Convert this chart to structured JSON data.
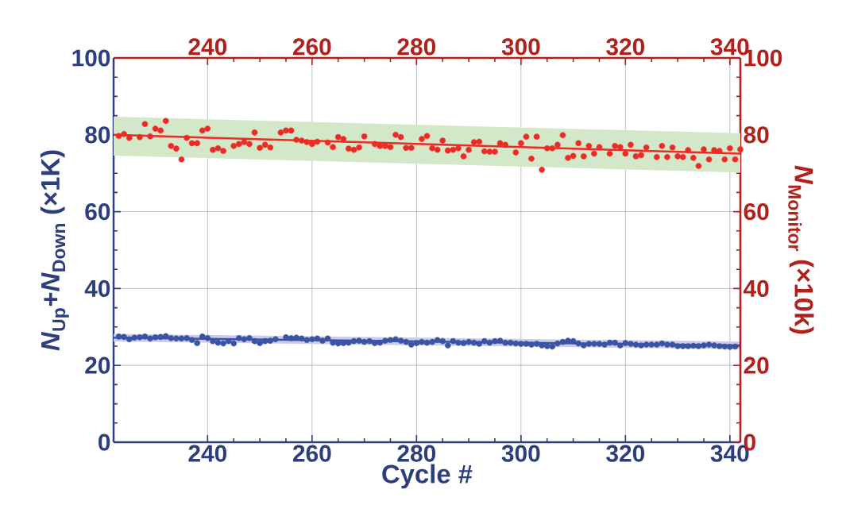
{
  "chart_data": {
    "type": "scatter",
    "xlabel": "Cycle #",
    "ylabel": "*N*$_{Up}$+*N*$_{Down}$ (×1K)",
    "y2label": "*N*$_{Monitor}$ (×10k)",
    "xlim": [
      222,
      342
    ],
    "xticks": [
      240,
      260,
      280,
      300,
      320,
      340
    ],
    "x2lim": [
      222,
      342
    ],
    "x2ticks": [
      240,
      260,
      280,
      300,
      320,
      340
    ],
    "ylim": [
      0,
      100
    ],
    "yticks": [
      0,
      20,
      40,
      60,
      80,
      100
    ],
    "y2lim": [
      0,
      100
    ],
    "y2ticks": [
      0,
      20,
      40,
      60,
      80,
      100
    ],
    "grid": true,
    "marker": "circle",
    "line_style": "solid",
    "series": [
      {
        "type": "line",
        "marker": "none",
        "color": "#3a53a4",
        "x": [
          222,
          342
        ],
        "values": [
          27.2,
          25.2
        ],
        "lower": [
          26.2,
          24.2
        ],
        "upper": [
          28.2,
          26.2
        ]
      },
      {
        "color": "#3a53a4",
        "x": [
          223,
          224,
          225,
          226,
          227,
          228,
          229,
          230,
          231,
          232,
          233,
          234,
          235,
          236,
          237,
          238,
          239,
          240,
          241,
          242,
          243,
          244,
          245,
          246,
          247,
          248,
          249,
          250,
          251,
          252,
          253,
          255,
          256,
          257,
          258,
          259,
          260,
          261,
          262,
          263,
          264,
          265,
          266,
          267,
          268,
          269,
          270,
          271,
          272,
          273,
          274,
          275,
          276,
          277,
          278,
          279,
          280,
          281,
          282,
          283,
          284,
          285,
          286,
          287,
          288,
          289,
          290,
          291,
          292,
          293,
          294,
          295,
          296,
          297,
          298,
          299,
          300,
          301,
          302,
          303,
          304,
          305,
          306,
          307,
          308,
          309,
          310,
          311,
          312,
          313,
          314,
          315,
          316,
          317,
          318,
          319,
          320,
          321,
          322,
          323,
          324,
          325,
          326,
          327,
          328,
          329,
          330,
          331,
          332,
          333,
          334,
          335,
          336,
          337,
          338,
          339,
          340,
          341
        ],
        "values": [
          27.5,
          27.4,
          26.8,
          27.2,
          27.3,
          27.5,
          27.0,
          27.3,
          27.4,
          27.6,
          27.1,
          27.0,
          27.0,
          27.1,
          26.6,
          25.8,
          27.5,
          27.1,
          26.3,
          25.9,
          25.7,
          26.3,
          25.7,
          27.1,
          26.8,
          27.1,
          26.3,
          25.8,
          26.3,
          26.4,
          26.8,
          27.3,
          27.1,
          27.2,
          27.0,
          26.6,
          26.8,
          27.0,
          26.4,
          27.0,
          25.9,
          25.7,
          25.8,
          25.9,
          26.3,
          26.4,
          26.1,
          26.3,
          25.8,
          25.9,
          26.4,
          26.6,
          26.8,
          26.4,
          26.1,
          25.4,
          25.8,
          26.1,
          25.9,
          26.1,
          26.6,
          26.3,
          25.2,
          26.3,
          25.9,
          25.8,
          26.1,
          25.9,
          25.6,
          26.3,
          25.9,
          26.3,
          26.4,
          25.9,
          25.9,
          25.7,
          25.6,
          25.6,
          25.4,
          25.6,
          25.2,
          25.0,
          24.9,
          25.7,
          26.1,
          26.4,
          26.3,
          25.7,
          25.2,
          25.6,
          25.6,
          25.6,
          25.4,
          25.9,
          25.9,
          25.2,
          25.8,
          25.6,
          25.4,
          25.2,
          25.4,
          25.4,
          25.4,
          25.7,
          25.4,
          25.4,
          25.0,
          25.0,
          25.0,
          25.1,
          25.0,
          25.2,
          25.4,
          25.2,
          25.0,
          24.9,
          24.8,
          24.9
        ]
      },
      {
        "type": "line",
        "marker": "none",
        "color": "#ee2a24",
        "axis": "y2",
        "x": [
          222,
          342
        ],
        "values": [
          80.0,
          75.1
        ],
        "lower": [
          74.6,
          70.2
        ],
        "upper": [
          84.7,
          80.4
        ]
      },
      {
        "color": "#ee2a24",
        "axis": "y2",
        "x": [
          223,
          224,
          225,
          227,
          228,
          229,
          230,
          231,
          232,
          233,
          234,
          235,
          236,
          237,
          238,
          239,
          240,
          241,
          242,
          243,
          245,
          246,
          247,
          248,
          249,
          250,
          251,
          252,
          254,
          255,
          256,
          257,
          258,
          259,
          260,
          261,
          263,
          264,
          265,
          266,
          267,
          268,
          269,
          270,
          272,
          273,
          274,
          275,
          276,
          277,
          278,
          279,
          281,
          282,
          283,
          284,
          285,
          286,
          287,
          288,
          289,
          290,
          291,
          292,
          293,
          294,
          295,
          296,
          297,
          299,
          300,
          301,
          302,
          303,
          304,
          305,
          306,
          307,
          308,
          309,
          310,
          311,
          312,
          313,
          314,
          315,
          317,
          318,
          319,
          320,
          321,
          322,
          323,
          324,
          326,
          327,
          328,
          329,
          330,
          331,
          332,
          333,
          334,
          335,
          336,
          337,
          338,
          339,
          340,
          341,
          342
        ],
        "values": [
          79.7,
          80.2,
          79.2,
          79.4,
          82.8,
          79.6,
          81.6,
          81.1,
          83.6,
          77.1,
          76.4,
          73.6,
          79.2,
          77.8,
          77.8,
          81.1,
          81.6,
          76.1,
          76.5,
          75.8,
          77.1,
          77.6,
          78.1,
          77.6,
          80.6,
          76.6,
          77.4,
          76.7,
          80.6,
          81.1,
          81.1,
          78.7,
          78.5,
          78.1,
          77.6,
          78.2,
          78.0,
          76.8,
          79.4,
          78.9,
          76.4,
          76.1,
          76.7,
          79.6,
          77.6,
          77.1,
          77.1,
          76.8,
          80.0,
          79.4,
          76.6,
          76.6,
          78.9,
          79.7,
          76.5,
          76.1,
          78.5,
          75.9,
          76.1,
          76.5,
          74.4,
          76.1,
          78.1,
          78.2,
          75.7,
          75.6,
          75.6,
          77.8,
          77.4,
          75.4,
          77.8,
          79.5,
          73.8,
          79.5,
          70.9,
          76.5,
          76.5,
          77.4,
          79.9,
          74.0,
          74.5,
          77.8,
          74.4,
          77.1,
          75.1,
          76.8,
          75.1,
          77.1,
          76.8,
          75.1,
          77.4,
          74.4,
          74.7,
          76.7,
          74.2,
          77.1,
          74.2,
          76.7,
          74.4,
          74.2,
          76.0,
          74.0,
          71.9,
          76.2,
          73.6,
          76.0,
          75.8,
          73.6,
          76.5,
          73.6,
          76.2
        ]
      }
    ]
  }
}
